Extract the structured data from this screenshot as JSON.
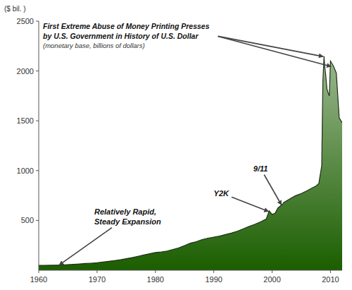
{
  "chart_data": {
    "type": "area",
    "title": "First Extreme Abuse of Money Printing Presses\nby U.S. Government in History of U.S. Dollar",
    "subtitle": "(monetary base, billions of dollars)",
    "y_label": "($ bil. )",
    "x": [
      1960,
      1961,
      1962,
      1963,
      1964,
      1965,
      1966,
      1967,
      1968,
      1969,
      1970,
      1971,
      1972,
      1973,
      1974,
      1975,
      1976,
      1977,
      1978,
      1979,
      1980,
      1981,
      1982,
      1983,
      1984,
      1985,
      1986,
      1987,
      1988,
      1989,
      1990,
      1991,
      1992,
      1993,
      1994,
      1995,
      1996,
      1997,
      1998,
      1999,
      1999.5,
      2000.0,
      2000.5,
      2001,
      2001.75,
      2002,
      2003,
      2004,
      2005,
      2006,
      2007,
      2007.5,
      2008.0,
      2008.5,
      2008.7,
      2008.9,
      2009.0,
      2009.2,
      2009.4,
      2009.6,
      2009.8,
      2010.0,
      2010.5,
      2011.0,
      2011.5,
      2012.0
    ],
    "values": [
      48,
      49,
      50,
      51,
      53,
      56,
      59,
      63,
      68,
      71,
      75,
      82,
      90,
      97,
      105,
      116,
      127,
      140,
      153,
      165,
      178,
      183,
      193,
      209,
      225,
      248,
      272,
      287,
      308,
      322,
      333,
      343,
      358,
      373,
      391,
      414,
      438,
      460,
      485,
      515,
      595,
      560,
      572,
      625,
      660,
      680,
      715,
      748,
      770,
      798,
      830,
      845,
      870,
      1050,
      1900,
      2150,
      2050,
      1950,
      1820,
      1780,
      1750,
      2100,
      2050,
      1980,
      1530,
      1480
    ],
    "color": "#1b5e00",
    "xlim": [
      1960,
      2012
    ],
    "ylim": [
      0,
      2500
    ],
    "xticks": [
      1960,
      1970,
      1980,
      1990,
      2000,
      2010
    ],
    "yticks": [
      500,
      1000,
      1500,
      2000,
      2500
    ],
    "grid": false,
    "annotations": [
      {
        "text": "Relatively Rapid,\nSteady Expansion",
        "x": 1963.5,
        "y": 52
      },
      {
        "text": "Y2K",
        "x": 1999.4,
        "y": 590
      },
      {
        "text": "9/11",
        "x": 2001.6,
        "y": 655
      },
      {
        "x": 2008.75,
        "y": 2145
      },
      {
        "x": 2010.1,
        "y": 2045
      }
    ]
  }
}
